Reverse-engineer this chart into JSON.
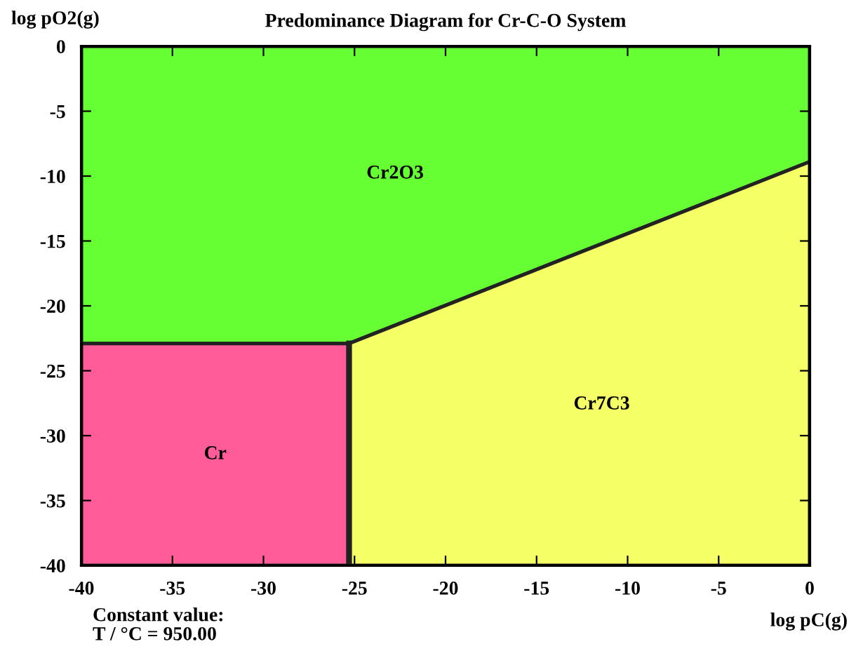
{
  "chart_data": {
    "type": "area",
    "title": "Predominance Diagram for Cr-C-O System",
    "xlabel": "log pC(g)",
    "ylabel": "log pO2(g)",
    "annotations": [
      "Constant value:\nT / °C = 950.00"
    ],
    "series": [
      {
        "name": "Cr2O3",
        "color": "#66ff33",
        "x": [
          -40,
          -40,
          -25.3,
          0,
          0
        ],
        "values": [
          0,
          -22.9,
          -22.9,
          -8.9,
          0
        ]
      },
      {
        "name": "Cr",
        "color": "#ff5c99",
        "x": [
          -40,
          -40,
          -25.3,
          -25.3
        ],
        "values": [
          -40,
          -22.9,
          -22.9,
          -40
        ]
      },
      {
        "name": "Cr7C3",
        "color": "#f5ff66",
        "x": [
          -25.3,
          -25.3,
          0,
          0
        ],
        "values": [
          -40,
          -22.9,
          -8.9,
          -40
        ]
      },
      {
        "type": "line",
        "color": "#222222",
        "x": [
          -25.3,
          -25.3
        ],
        "values": [
          -40,
          -22.9
        ]
      }
    ],
    "xlim": [
      -40,
      0
    ],
    "ylim": [
      -40,
      0
    ],
    "xticks": [
      -40,
      -35,
      -30,
      -25,
      -20,
      -15,
      -10,
      -5,
      0
    ],
    "yticks": [
      -40,
      -35,
      -30,
      -25,
      -20,
      -15,
      -10,
      -5,
      0
    ],
    "grid": false,
    "legend": false
  }
}
